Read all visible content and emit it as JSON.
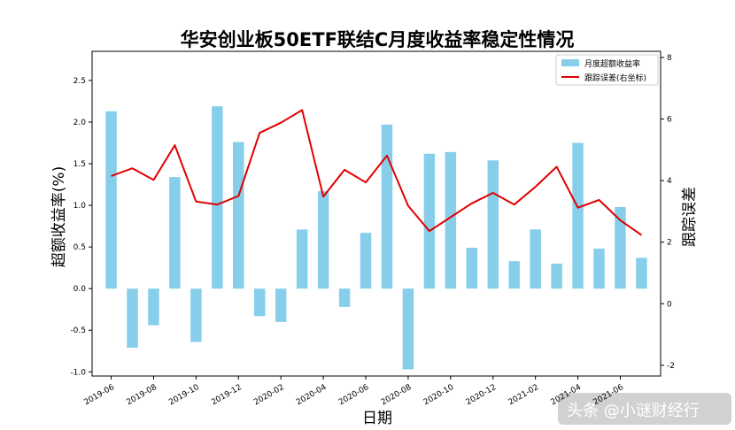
{
  "chart_data": {
    "type": "bar+line",
    "title": "华安创业板50ETF联结C月度收益率稳定性情况",
    "xlabel": "日期",
    "ylabel": "超额收益率(%)",
    "y2label": "跟踪误差",
    "ylim": [
      -1.05,
      2.85
    ],
    "y2lim": [
      -2.35,
      8.2
    ],
    "yticks": [
      "-1.0",
      "-0.5",
      "0.0",
      "0.5",
      "1.0",
      "1.5",
      "2.0",
      "2.5"
    ],
    "y2ticks": [
      "-2",
      "0",
      "2",
      "4",
      "6",
      "8"
    ],
    "xtick_labels": [
      "2019-06",
      "2019-08",
      "2019-10",
      "2019-12",
      "2020-02",
      "2020-04",
      "2020-06",
      "2020-08",
      "2020-10",
      "2020-12",
      "2021-02",
      "2021-04",
      "2021-06"
    ],
    "categories": [
      "2019-06",
      "2019-07",
      "2019-08",
      "2019-09",
      "2019-10",
      "2019-11",
      "2019-12",
      "2020-01",
      "2020-02",
      "2020-03",
      "2020-04",
      "2020-05",
      "2020-06",
      "2020-07",
      "2020-08",
      "2020-09",
      "2020-10",
      "2020-11",
      "2020-12",
      "2021-01",
      "2021-02",
      "2021-03",
      "2021-04",
      "2021-05",
      "2021-06",
      "2021-07"
    ],
    "series": [
      {
        "name": "月度超额收益率",
        "type": "bar",
        "color": "#87ceeb",
        "values": [
          2.13,
          -0.71,
          -0.44,
          1.34,
          -0.64,
          2.19,
          1.76,
          -0.33,
          -0.4,
          0.71,
          1.17,
          -0.22,
          0.67,
          1.97,
          -0.97,
          1.62,
          1.64,
          0.49,
          1.54,
          0.33,
          0.71,
          0.3,
          1.75,
          0.48,
          0.98,
          0.37
        ]
      },
      {
        "name": "跟踪误差(右坐标)",
        "type": "line",
        "color": "#e00000",
        "values": [
          4.15,
          4.4,
          4.02,
          5.15,
          3.32,
          3.22,
          3.5,
          5.55,
          5.88,
          6.29,
          3.48,
          4.35,
          3.94,
          4.81,
          3.18,
          2.36,
          2.81,
          3.26,
          3.6,
          3.22,
          3.8,
          4.45,
          3.12,
          3.37,
          2.71,
          2.23
        ]
      }
    ],
    "legend_position": "top-right",
    "grid": false
  },
  "watermark": {
    "text": "头条 @小谜财经行"
  }
}
